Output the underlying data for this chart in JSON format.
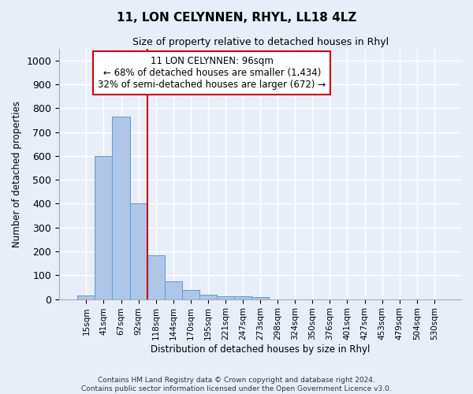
{
  "title": "11, LON CELYNNEN, RHYL, LL18 4LZ",
  "subtitle": "Size of property relative to detached houses in Rhyl",
  "xlabel": "Distribution of detached houses by size in Rhyl",
  "ylabel": "Number of detached properties",
  "bar_labels": [
    "15sqm",
    "41sqm",
    "67sqm",
    "92sqm",
    "118sqm",
    "144sqm",
    "170sqm",
    "195sqm",
    "221sqm",
    "247sqm",
    "273sqm",
    "298sqm",
    "324sqm",
    "350sqm",
    "376sqm",
    "401sqm",
    "427sqm",
    "453sqm",
    "479sqm",
    "504sqm",
    "530sqm"
  ],
  "bar_values": [
    15,
    600,
    765,
    400,
    185,
    75,
    38,
    20,
    13,
    12,
    8,
    0,
    0,
    0,
    0,
    0,
    0,
    0,
    0,
    0,
    0
  ],
  "bar_color": "#aec6e8",
  "bar_edge_color": "#5b9bd5",
  "vline_x_idx": 3.5,
  "vline_color": "#cc0000",
  "annotation_text": "11 LON CELYNNEN: 96sqm\n← 68% of detached houses are smaller (1,434)\n32% of semi-detached houses are larger (672) →",
  "annotation_box_color": "#ffffff",
  "annotation_box_edge": "#cc0000",
  "ylim": [
    0,
    1050
  ],
  "yticks": [
    0,
    100,
    200,
    300,
    400,
    500,
    600,
    700,
    800,
    900,
    1000
  ],
  "footer_line1": "Contains HM Land Registry data © Crown copyright and database right 2024.",
  "footer_line2": "Contains public sector information licensed under the Open Government Licence v3.0.",
  "background_color": "#e8eef8",
  "grid_color": "#ffffff",
  "title_fontsize": 11,
  "subtitle_fontsize": 9
}
